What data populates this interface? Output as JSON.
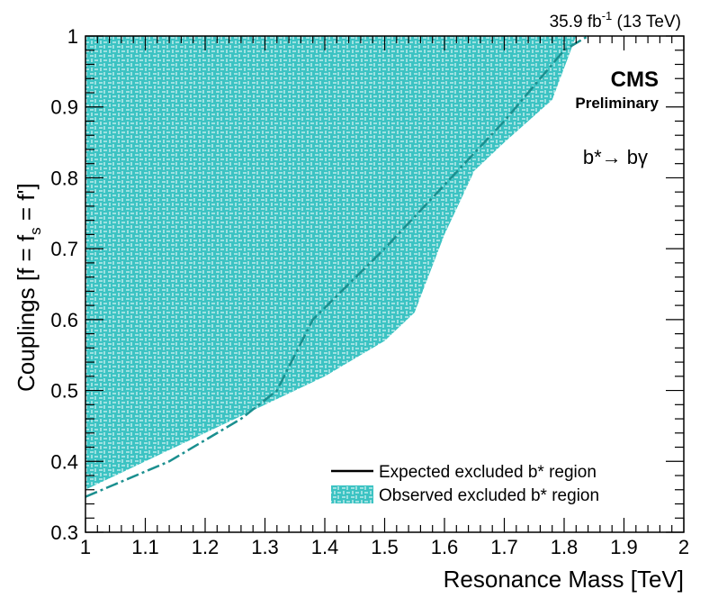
{
  "header": {
    "lumi_text": "35.9 fb",
    "lumi_sup": "-1",
    "energy_text": " (13 TeV)",
    "experiment": "CMS",
    "status": "Preliminary",
    "process": "b*→ bγ"
  },
  "colors": {
    "fill": "#3cc3c3",
    "hatch_line": "#ffffff",
    "expected_line": "#1b8f8f",
    "axis": "#000000"
  },
  "chart_data": {
    "type": "area",
    "xlabel": "Resonance Mass [TeV]",
    "ylabel_main": "Couplings [f = f",
    "ylabel_sub": "s",
    "ylabel_end": " = f']",
    "xlim": [
      1.0,
      2.0
    ],
    "ylim": [
      0.3,
      1.0
    ],
    "x_ticks": [
      1,
      1.1,
      1.2,
      1.3,
      1.4,
      1.5,
      1.6,
      1.7,
      1.8,
      1.9,
      2
    ],
    "x_tick_labels": [
      "1",
      "1.1",
      "1.2",
      "1.3",
      "1.4",
      "1.5",
      "1.6",
      "1.7",
      "1.8",
      "1.9",
      "2"
    ],
    "y_ticks": [
      0.3,
      0.4,
      0.5,
      0.6,
      0.7,
      0.8,
      0.9,
      1.0
    ],
    "y_tick_labels": [
      "0.3",
      "0.4",
      "0.5",
      "0.6",
      "0.7",
      "0.8",
      "0.9",
      "1"
    ],
    "legend": {
      "position": "bottom-right",
      "entries": [
        {
          "label": "Expected excluded b* region",
          "style": "line"
        },
        {
          "label": "Observed excluded b* region",
          "style": "hatched-fill"
        }
      ]
    },
    "series": [
      {
        "name": "Observed excluded b* region",
        "kind": "filled-upper-left",
        "x": [
          1.0,
          1.1,
          1.2,
          1.3,
          1.4,
          1.5,
          1.55,
          1.6,
          1.65,
          1.7,
          1.78,
          1.82
        ],
        "y": [
          0.36,
          0.4,
          0.44,
          0.48,
          0.52,
          0.57,
          0.61,
          0.72,
          0.81,
          0.85,
          0.91,
          1.0
        ]
      },
      {
        "name": "Expected excluded b* region",
        "kind": "dashed-line",
        "x": [
          1.0,
          1.14,
          1.26,
          1.32,
          1.38,
          1.5,
          1.6,
          1.7,
          1.8,
          1.84
        ],
        "y": [
          0.35,
          0.4,
          0.46,
          0.5,
          0.6,
          0.7,
          0.79,
          0.88,
          0.98,
          1.0
        ]
      }
    ]
  }
}
